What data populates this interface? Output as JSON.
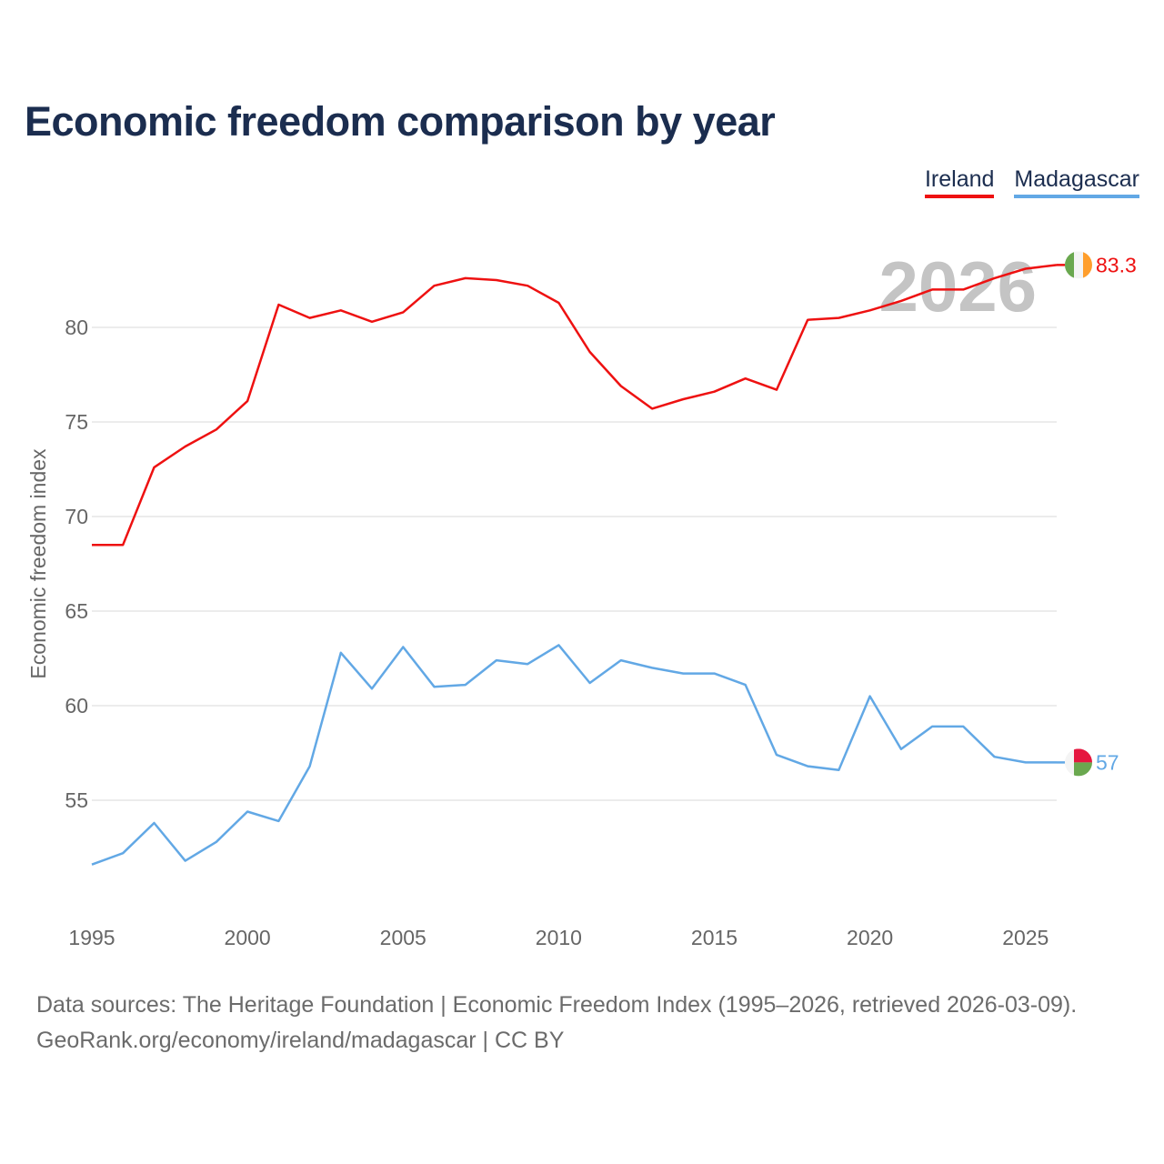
{
  "title": "Economic freedom comparison by year",
  "footer": {
    "sources": "Data sources: The Heritage Foundation | Economic Freedom Index (1995–2026, retrieved 2026-03-09).",
    "credit": "GeoRank.org/economy/ireland/madagascar | CC BY"
  },
  "chart_data": {
    "type": "line",
    "title": "Economic freedom comparison by year",
    "xlabel": "",
    "ylabel": "Economic freedom index",
    "year_label": "2026",
    "x": [
      1995,
      1996,
      1997,
      1998,
      1999,
      2000,
      2001,
      2002,
      2003,
      2004,
      2005,
      2006,
      2007,
      2008,
      2009,
      2010,
      2011,
      2012,
      2013,
      2014,
      2015,
      2016,
      2017,
      2018,
      2019,
      2020,
      2021,
      2022,
      2023,
      2024,
      2025,
      2026
    ],
    "xlim": [
      1995,
      2026
    ],
    "ylim": [
      50,
      87
    ],
    "x_ticks": [
      "1995",
      "2000",
      "2005",
      "2010",
      "2015",
      "2020",
      "2025"
    ],
    "y_ticks": [
      "55",
      "60",
      "65",
      "70",
      "75",
      "80"
    ],
    "grid": true,
    "legend_position": "top-right",
    "series": [
      {
        "name": "Ireland",
        "color": "#ee1111",
        "end_label": "83.3",
        "flag_icon": "ireland-flag-icon",
        "values": [
          68.5,
          68.5,
          72.6,
          73.7,
          74.6,
          76.1,
          81.2,
          80.5,
          80.9,
          80.3,
          80.8,
          82.2,
          82.6,
          82.5,
          82.2,
          81.3,
          78.7,
          76.9,
          75.7,
          76.2,
          76.6,
          77.3,
          76.7,
          80.4,
          80.5,
          80.9,
          81.4,
          82.0,
          82.0,
          82.6,
          83.1,
          83.3
        ]
      },
      {
        "name": "Madagascar",
        "color": "#62a8e5",
        "end_label": "57",
        "flag_icon": "madagascar-flag-icon",
        "values": [
          51.6,
          52.2,
          53.8,
          51.8,
          52.8,
          54.4,
          53.9,
          56.8,
          62.8,
          60.9,
          63.1,
          61.0,
          61.1,
          62.4,
          62.2,
          63.2,
          61.2,
          62.4,
          62.0,
          61.7,
          61.7,
          61.1,
          57.4,
          56.8,
          56.6,
          60.5,
          57.7,
          58.9,
          58.9,
          57.3,
          57.0,
          57.0
        ]
      }
    ]
  }
}
